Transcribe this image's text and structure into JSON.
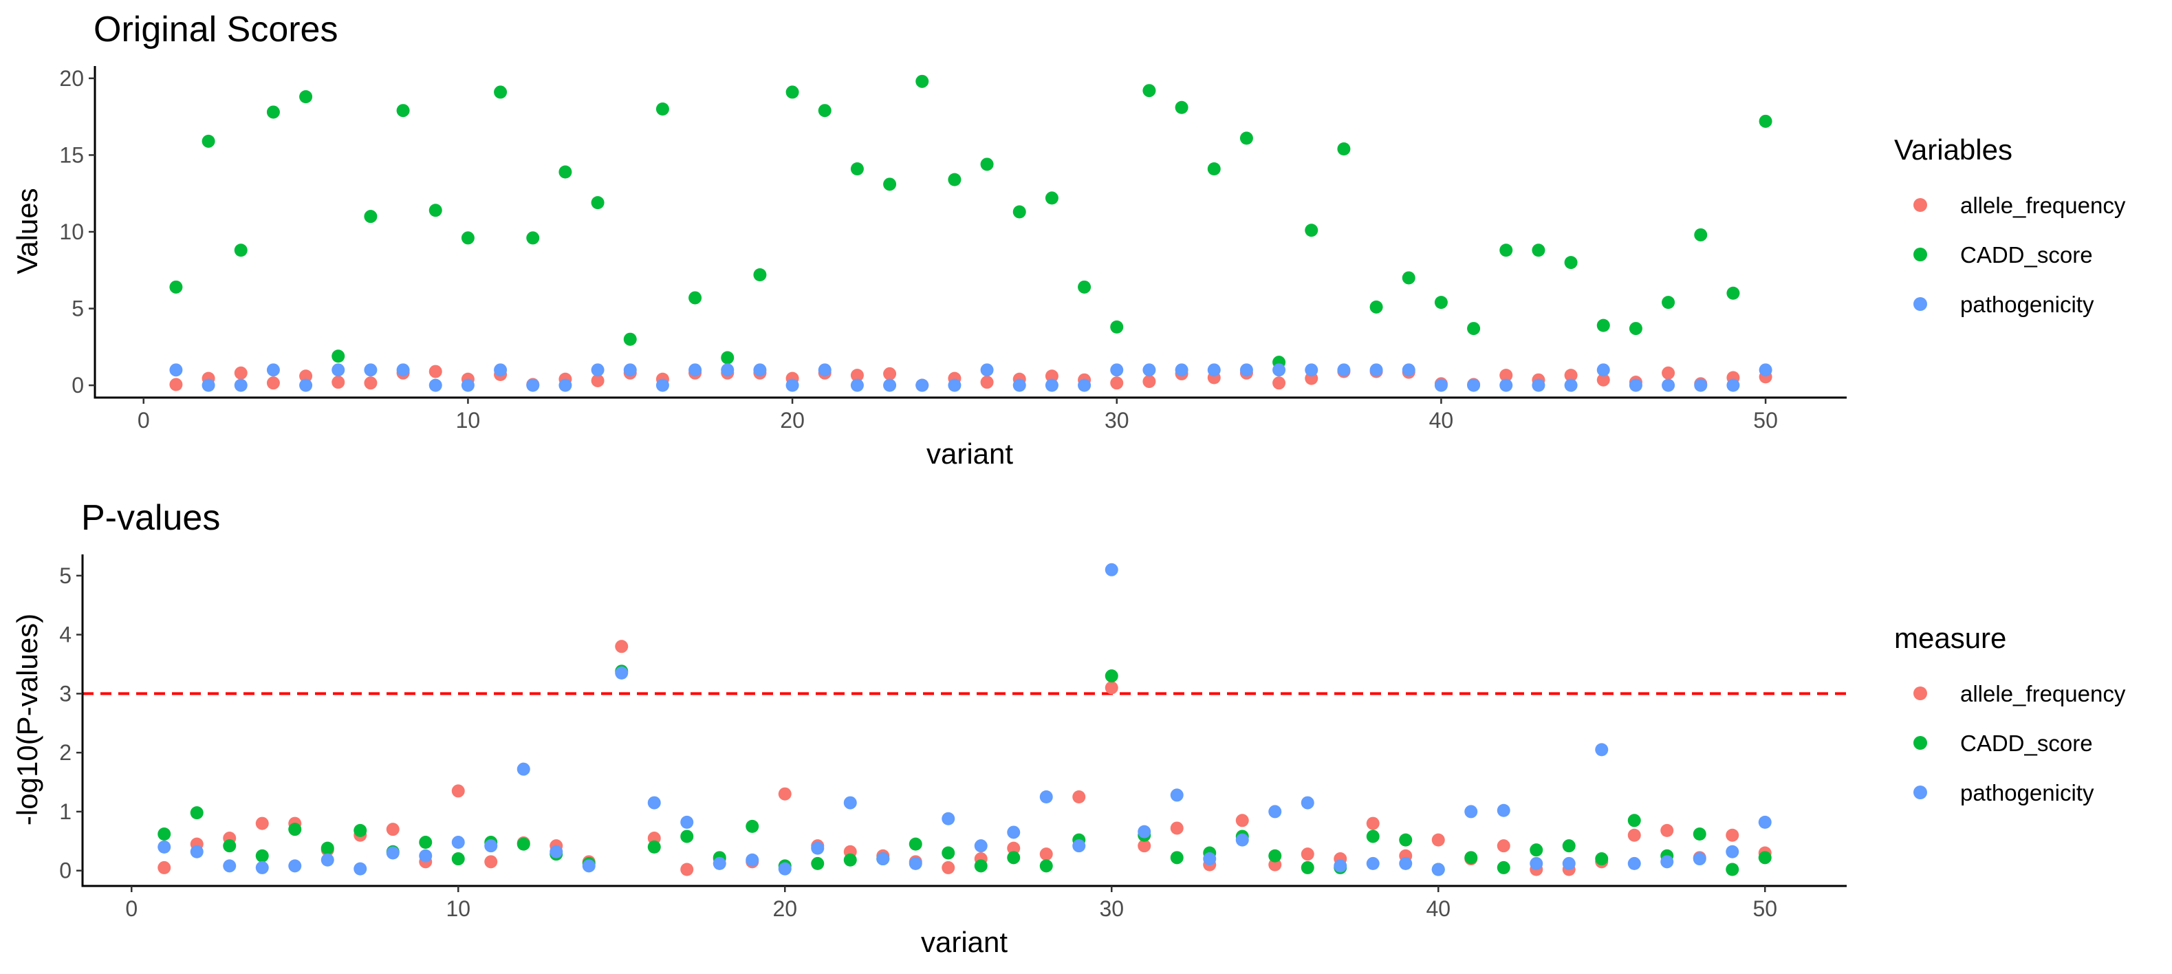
{
  "chart_data": [
    {
      "type": "scatter",
      "title": "Original Scores",
      "xlabel": "variant",
      "ylabel": "Values",
      "xlim": [
        -1.5,
        52.5
      ],
      "ylim": [
        -0.8,
        20.8
      ],
      "xticks": [
        0,
        10,
        20,
        30,
        40,
        50
      ],
      "yticks": [
        0,
        5,
        10,
        15,
        20
      ],
      "grid": false,
      "legend": {
        "title": "Variables",
        "position": "right"
      },
      "x": [
        1,
        2,
        3,
        4,
        5,
        6,
        7,
        8,
        9,
        10,
        11,
        12,
        13,
        14,
        15,
        16,
        17,
        18,
        19,
        20,
        21,
        22,
        23,
        24,
        25,
        26,
        27,
        28,
        29,
        30,
        31,
        32,
        33,
        34,
        35,
        36,
        37,
        38,
        39,
        40,
        41,
        42,
        43,
        44,
        45,
        46,
        47,
        48,
        49,
        50
      ],
      "series": [
        {
          "name": "allele_frequency",
          "color": "#F8766D",
          "values": [
            0.05,
            0.45,
            0.8,
            0.15,
            0.6,
            0.2,
            0.15,
            0.8,
            0.9,
            0.4,
            0.7,
            0.05,
            0.4,
            0.3,
            0.8,
            0.4,
            0.8,
            0.8,
            0.8,
            0.45,
            0.8,
            0.65,
            0.75,
            0.0,
            0.45,
            0.2,
            0.4,
            0.6,
            0.35,
            0.15,
            0.25,
            0.75,
            0.5,
            0.8,
            0.15,
            0.45,
            0.9,
            0.9,
            0.85,
            0.1,
            0.05,
            0.65,
            0.35,
            0.65,
            0.35,
            0.2,
            0.8,
            0.1,
            0.5,
            0.55
          ]
        },
        {
          "name": "CADD_score",
          "color": "#00BA38",
          "values": [
            6.4,
            15.9,
            8.8,
            17.8,
            18.8,
            1.9,
            11.0,
            17.9,
            11.4,
            9.6,
            19.1,
            9.6,
            13.9,
            11.9,
            3.0,
            18.0,
            5.7,
            1.8,
            7.2,
            19.1,
            17.9,
            14.1,
            13.1,
            19.8,
            13.4,
            14.4,
            11.3,
            12.2,
            6.4,
            3.8,
            19.2,
            18.1,
            14.1,
            16.1,
            1.5,
            10.1,
            15.4,
            5.1,
            7.0,
            5.4,
            3.7,
            8.8,
            8.8,
            8.0,
            3.9,
            3.7,
            5.4,
            9.8,
            6.0,
            17.2
          ]
        },
        {
          "name": "pathogenicity",
          "color": "#619CFF",
          "values": [
            1.0,
            0.0,
            0.0,
            1.0,
            0.0,
            1.0,
            1.0,
            1.0,
            0.0,
            0.0,
            1.0,
            0.0,
            0.0,
            1.0,
            1.0,
            0.0,
            1.0,
            1.0,
            1.0,
            0.0,
            1.0,
            0.0,
            0.0,
            0.0,
            0.0,
            1.0,
            0.0,
            0.0,
            0.0,
            1.0,
            1.0,
            1.0,
            1.0,
            1.0,
            1.0,
            1.0,
            1.0,
            1.0,
            1.0,
            0.0,
            0.0,
            0.0,
            0.0,
            0.0,
            1.0,
            0.0,
            0.0,
            0.0,
            0.0,
            1.0
          ]
        }
      ]
    },
    {
      "type": "scatter",
      "title": "P-values",
      "xlabel": "variant",
      "ylabel": "-log10(P-values)",
      "xlim": [
        -1.5,
        52.5
      ],
      "ylim": [
        -0.26,
        5.36
      ],
      "xticks": [
        0,
        10,
        20,
        30,
        40,
        50
      ],
      "yticks": [
        0,
        1,
        2,
        3,
        4,
        5
      ],
      "grid": false,
      "reference_line": {
        "y": 3,
        "color": "#FF0000",
        "style": "dashed"
      },
      "legend": {
        "title": "measure",
        "position": "right"
      },
      "x": [
        1,
        2,
        3,
        4,
        5,
        6,
        7,
        8,
        9,
        10,
        11,
        12,
        13,
        14,
        15,
        16,
        17,
        18,
        19,
        20,
        21,
        22,
        23,
        24,
        25,
        26,
        27,
        28,
        29,
        30,
        31,
        32,
        33,
        34,
        35,
        36,
        37,
        38,
        39,
        40,
        41,
        42,
        43,
        44,
        45,
        46,
        47,
        48,
        49,
        50
      ],
      "series": [
        {
          "name": "allele_frequency",
          "color": "#F8766D",
          "values": [
            0.05,
            0.45,
            0.55,
            0.8,
            0.8,
            0.35,
            0.6,
            0.7,
            0.15,
            1.35,
            0.15,
            0.47,
            0.42,
            0.15,
            3.8,
            0.55,
            0.02,
            0.2,
            0.15,
            1.3,
            0.42,
            0.32,
            0.25,
            0.15,
            0.05,
            0.2,
            0.38,
            0.28,
            1.25,
            3.1,
            0.42,
            0.72,
            0.1,
            0.85,
            0.1,
            0.28,
            0.2,
            0.8,
            0.25,
            0.52,
            0.2,
            0.42,
            0.02,
            0.02,
            0.15,
            0.6,
            0.68,
            0.22,
            0.6,
            0.3
          ]
        },
        {
          "name": "CADD_score",
          "color": "#00BA38",
          "values": [
            0.62,
            0.98,
            0.42,
            0.25,
            0.7,
            0.38,
            0.68,
            0.32,
            0.48,
            0.2,
            0.48,
            0.45,
            0.28,
            0.12,
            3.38,
            0.4,
            0.58,
            0.22,
            0.75,
            0.08,
            0.12,
            0.18,
            0.2,
            0.45,
            0.3,
            0.08,
            0.22,
            0.08,
            0.52,
            3.3,
            0.6,
            0.22,
            0.3,
            0.58,
            0.25,
            0.05,
            0.05,
            0.58,
            0.52,
            0.02,
            0.22,
            0.05,
            0.35,
            0.42,
            0.2,
            0.85,
            0.25,
            0.62,
            0.02,
            0.22
          ]
        },
        {
          "name": "pathogenicity",
          "color": "#619CFF",
          "values": [
            0.4,
            0.32,
            0.08,
            0.05,
            0.08,
            0.18,
            0.03,
            0.3,
            0.25,
            0.48,
            0.42,
            1.72,
            0.32,
            0.08,
            3.35,
            1.15,
            0.82,
            0.12,
            0.18,
            0.03,
            0.38,
            1.15,
            0.2,
            0.12,
            0.88,
            0.42,
            0.65,
            1.25,
            0.42,
            5.1,
            0.66,
            1.28,
            0.2,
            0.52,
            1.0,
            1.15,
            0.08,
            0.12,
            0.12,
            0.02,
            1.0,
            1.02,
            0.12,
            0.12,
            2.05,
            0.12,
            0.15,
            0.2,
            0.32,
            0.82
          ]
        }
      ]
    }
  ]
}
